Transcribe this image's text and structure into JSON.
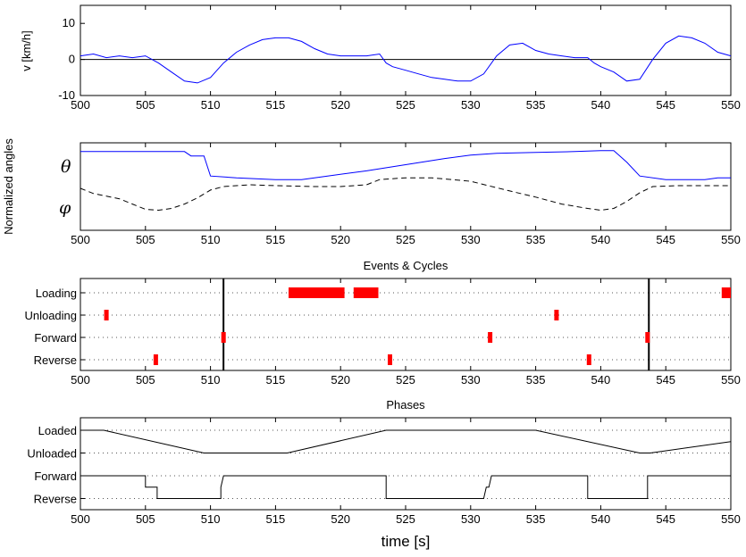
{
  "chart_data": [
    {
      "id": "velocity",
      "type": "line",
      "ylabel": "v [km/h]",
      "xlim": [
        500,
        550
      ],
      "ylim": [
        -10,
        15
      ],
      "xticks": [
        500,
        505,
        510,
        515,
        520,
        525,
        530,
        535,
        540,
        545,
        550
      ],
      "yticks": [
        -10,
        0,
        10
      ],
      "zero_line": true,
      "series": [
        {
          "color": "#0000ff",
          "x": [
            500,
            501,
            502,
            503,
            504,
            505,
            506,
            507,
            508,
            509,
            510,
            511,
            512,
            513,
            514,
            515,
            516,
            517,
            518,
            519,
            520,
            521,
            522,
            523,
            523.5,
            524,
            525,
            526,
            527,
            528,
            529,
            530,
            531,
            532,
            533,
            534,
            535,
            536,
            537,
            538,
            539,
            539.5,
            540,
            541,
            542,
            543,
            544,
            545,
            546,
            547,
            548,
            549,
            550
          ],
          "y": [
            1,
            1.5,
            0.5,
            1,
            0.5,
            1,
            -1,
            -3.5,
            -6,
            -6.5,
            -5,
            -1,
            2,
            4,
            5.5,
            6,
            6,
            5,
            3,
            1.5,
            1,
            1,
            1,
            1.5,
            -1,
            -2,
            -3,
            -4,
            -5,
            -5.5,
            -6,
            -6,
            -4,
            1,
            4,
            4.5,
            2.5,
            1.5,
            1,
            0.5,
            0.5,
            -1,
            -2,
            -3.5,
            -6,
            -5.5,
            0,
            4.5,
            6.5,
            6,
            4.5,
            2,
            1
          ]
        }
      ]
    },
    {
      "id": "angles",
      "type": "line",
      "ylabel": "Normalized angles",
      "ytick_labels": [
        "θ",
        "φ"
      ],
      "xlim": [
        500,
        550
      ],
      "xticks": [
        500,
        505,
        510,
        515,
        520,
        525,
        530,
        535,
        540,
        545,
        550
      ],
      "series": [
        {
          "name": "θ",
          "color": "#0000ff",
          "style": "solid",
          "x": [
            500,
            508,
            508.5,
            509.5,
            510,
            512,
            515,
            517,
            519,
            522,
            525,
            528,
            530,
            532,
            535,
            538,
            540,
            541,
            542,
            543,
            545,
            548,
            549,
            550
          ],
          "y": [
            0.9,
            0.9,
            0.85,
            0.85,
            0.62,
            0.6,
            0.58,
            0.58,
            0.62,
            0.68,
            0.75,
            0.82,
            0.86,
            0.88,
            0.89,
            0.9,
            0.91,
            0.91,
            0.78,
            0.62,
            0.58,
            0.58,
            0.6,
            0.6
          ]
        },
        {
          "name": "φ",
          "color": "#000000",
          "style": "dashed",
          "x": [
            500,
            501,
            503,
            504,
            505,
            506,
            507,
            508,
            509,
            510,
            511,
            513,
            515,
            518,
            520,
            522,
            523,
            525,
            527,
            530,
            533,
            535,
            537,
            539,
            540,
            541,
            542,
            543,
            544,
            546,
            548,
            550
          ],
          "y": [
            0.48,
            0.42,
            0.36,
            0.3,
            0.24,
            0.23,
            0.25,
            0.3,
            0.37,
            0.46,
            0.5,
            0.52,
            0.51,
            0.5,
            0.5,
            0.52,
            0.58,
            0.6,
            0.6,
            0.56,
            0.45,
            0.38,
            0.3,
            0.25,
            0.23,
            0.25,
            0.33,
            0.43,
            0.5,
            0.51,
            0.51,
            0.51
          ]
        }
      ]
    },
    {
      "id": "events",
      "type": "scatter",
      "title": "Events & Cycles",
      "xlim": [
        500,
        550
      ],
      "xticks": [
        500,
        505,
        510,
        515,
        520,
        525,
        530,
        535,
        540,
        545,
        550
      ],
      "categories": [
        "Loading",
        "Unloading",
        "Forward",
        "Reverse"
      ],
      "marker_color": "#ff0000",
      "events": [
        {
          "category": "Loading",
          "x": [
            516,
            520.3
          ]
        },
        {
          "category": "Loading",
          "x": [
            521,
            522.9
          ]
        },
        {
          "category": "Loading",
          "x": [
            549.3,
            550
          ]
        },
        {
          "category": "Unloading",
          "x": [
            502,
            502
          ]
        },
        {
          "category": "Unloading",
          "x": [
            536.6,
            536.6
          ]
        },
        {
          "category": "Forward",
          "x": [
            511,
            511
          ]
        },
        {
          "category": "Forward",
          "x": [
            531.5,
            531.5
          ]
        },
        {
          "category": "Forward",
          "x": [
            543.6,
            543.6
          ]
        },
        {
          "category": "Reverse",
          "x": [
            505.8,
            505.8
          ]
        },
        {
          "category": "Reverse",
          "x": [
            523.8,
            523.8
          ]
        },
        {
          "category": "Reverse",
          "x": [
            539.1,
            539.1
          ]
        }
      ],
      "cycle_boundaries": [
        511,
        543.7
      ]
    },
    {
      "id": "phases",
      "type": "line",
      "title": "Phases",
      "xlabel": "time [s]",
      "xlim": [
        500,
        550
      ],
      "xticks": [
        500,
        505,
        510,
        515,
        520,
        525,
        530,
        535,
        540,
        545,
        550
      ],
      "categories": [
        "Loaded",
        "Unloaded",
        "Forward",
        "Reverse"
      ],
      "load_series": {
        "color": "#000000",
        "x": [
          500,
          501.8,
          509.5,
          510.3,
          515.9,
          523.5,
          535,
          543,
          543.8,
          550
        ],
        "y": [
          "Loaded",
          "Loaded",
          "Unloaded",
          "Unloaded",
          "Unloaded",
          "Loaded",
          "Loaded",
          "Unloaded",
          "Unloaded",
          "mid"
        ]
      },
      "direction_series": {
        "color": "#000000",
        "x": [
          500,
          505,
          505,
          505.2,
          505.9,
          505.9,
          510.8,
          510.8,
          511,
          523.5,
          523.5,
          531,
          531.2,
          531.4,
          531.6,
          539,
          539,
          543.6,
          543.6,
          550
        ],
        "y": [
          1,
          1,
          0.5,
          0.5,
          0.5,
          0,
          0,
          0.5,
          1,
          1,
          0,
          0,
          0.5,
          0.5,
          1,
          1,
          0,
          0,
          1,
          1
        ]
      }
    }
  ]
}
